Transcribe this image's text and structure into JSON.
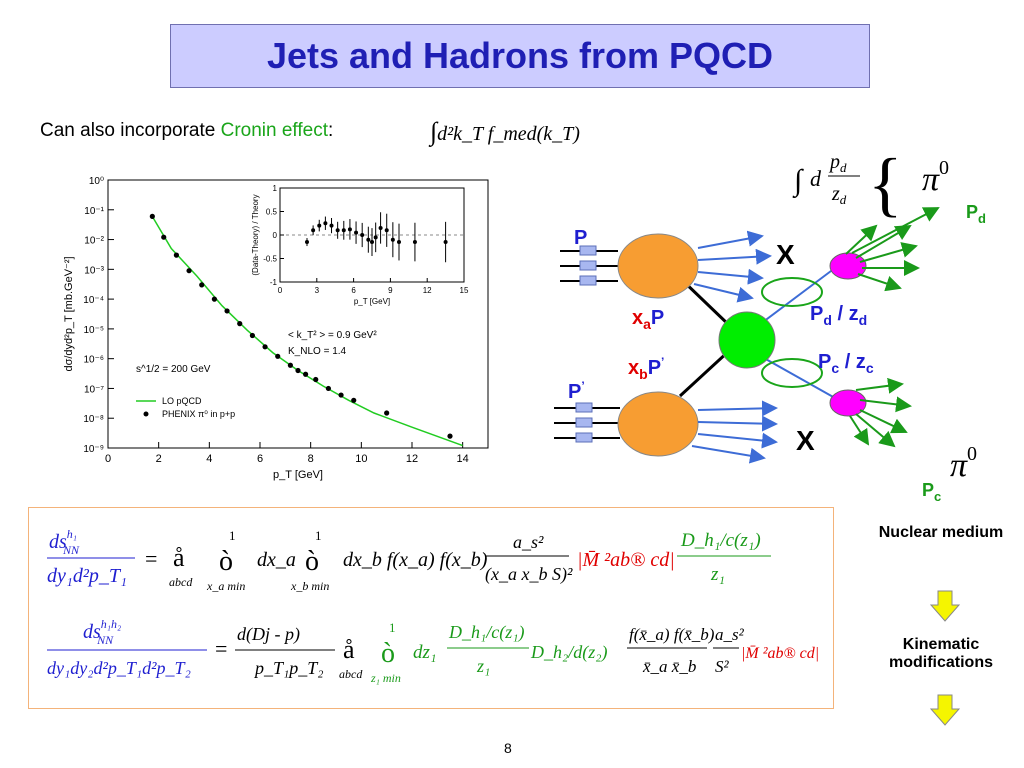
{
  "title": "Jets and Hadrons from PQCD",
  "intro": {
    "prefix": "Can also incorporate ",
    "cronin": "Cronin effect",
    "colon": ":"
  },
  "integral_kt": "d²k_T f_med(k_T)",
  "integral_pd": {
    "d": "d",
    "num": "p",
    "num_sub": "d",
    "den": "z",
    "den_sub": "d"
  },
  "main_chart": {
    "ylabel": "dσ/dyd²p_T [mb.GeV⁻²]",
    "xlabel": "p_T [GeV]",
    "yticks": [
      "10⁰",
      "10⁻¹",
      "10⁻²",
      "10⁻³",
      "10⁻⁴",
      "10⁻⁵",
      "10⁻⁶",
      "10⁻⁷",
      "10⁻⁸",
      "10⁻⁹"
    ],
    "xticks": [
      "0",
      "2",
      "4",
      "6",
      "8",
      "10",
      "12",
      "14"
    ],
    "energy": "s^1/2 = 200 GeV",
    "kt_note": "< k_T² > = 0.9 GeV²",
    "knlo": "K_NLO = 1.4",
    "legend_line": "LO pQCD",
    "legend_dots": "PHENIX π⁰ in p+p"
  },
  "inset_chart": {
    "ylabel": "(Data-Theory) / Theory",
    "xlabel": "p_T [GeV]",
    "yticks": [
      "1",
      "0.5",
      "0",
      "-0.5",
      "-1"
    ],
    "xticks": [
      "0",
      "3",
      "6",
      "9",
      "12",
      "15"
    ]
  },
  "chart_data": [
    {
      "type": "scatter",
      "title": "",
      "xlabel": "p_T [GeV]",
      "ylabel": "dσ/dyd²p_T [mb.GeV⁻²]",
      "xlim": [
        0,
        15
      ],
      "ylim": [
        1e-09,
        1
      ],
      "yscale": "log",
      "series": [
        {
          "name": "PHENIX π⁰ in p+p",
          "x": [
            1.75,
            2.2,
            2.7,
            3.2,
            3.7,
            4.2,
            4.7,
            5.2,
            5.7,
            6.2,
            6.7,
            7.2,
            7.5,
            7.8,
            8.2,
            8.7,
            9.2,
            9.7,
            11.0,
            13.5
          ],
          "y": [
            0.06,
            0.012,
            0.003,
            0.0009,
            0.0003,
            0.0001,
            4e-05,
            1.5e-05,
            6e-06,
            2.5e-06,
            1.2e-06,
            6e-07,
            4e-07,
            3e-07,
            2e-07,
            1e-07,
            6e-08,
            4e-08,
            1.5e-08,
            2.5e-09
          ]
        },
        {
          "name": "LO pQCD",
          "x": [
            1.7,
            2.5,
            3.5,
            4.5,
            5.5,
            6.5,
            7.5,
            8.5,
            9.5,
            10.5,
            12.0,
            14.0
          ],
          "y": [
            0.07,
            0.005,
            0.0006,
            6e-05,
            9e-06,
            1.6e-06,
            4e-07,
            1.2e-07,
            4e-08,
            1.5e-08,
            5e-09,
            1.2e-09
          ]
        }
      ]
    },
    {
      "type": "scatter",
      "title": "",
      "xlabel": "p_T [GeV]",
      "ylabel": "(Data-Theory) / Theory",
      "xlim": [
        0,
        15
      ],
      "ylim": [
        -1,
        1
      ],
      "series": [
        {
          "name": "",
          "x": [
            2.2,
            2.7,
            3.2,
            3.7,
            4.2,
            4.7,
            5.2,
            5.7,
            6.2,
            6.7,
            7.2,
            7.5,
            7.8,
            8.2,
            8.7,
            9.2,
            9.7,
            11.0,
            13.5
          ],
          "y": [
            -0.15,
            0.1,
            0.2,
            0.25,
            0.2,
            0.1,
            0.1,
            0.12,
            0.05,
            0.0,
            -0.1,
            -0.15,
            -0.05,
            0.15,
            0.1,
            -0.1,
            -0.15,
            -0.15,
            -0.15
          ]
        }
      ]
    }
  ],
  "diagram": {
    "P": "P",
    "P_prime": "P",
    "xaP": {
      "x": "x",
      "sub": "a",
      "P": "P"
    },
    "xbP": {
      "x": "x",
      "sub": "b",
      "P": "P",
      "prime": "’"
    },
    "X": "X",
    "pi0": "π",
    "pi0_sup": "0",
    "Pd": {
      "P": "P",
      "sub": "d"
    },
    "Pc": {
      "P": "P",
      "sub": "c"
    },
    "Pd_zd": {
      "P": "P",
      "sub1": "d",
      "mid": " / z",
      "sub2": "d"
    },
    "Pc_zc": {
      "P": "P",
      "sub1": "c",
      "mid": " / z",
      "sub2": "c"
    },
    "colors": {
      "hadron": "#f79d32",
      "parton": "#00ee00",
      "fragment": "#ff00ff",
      "arrow_blue": "#3d6cd6",
      "arrow_green": "#1a9a1a"
    }
  },
  "side": {
    "nuclear": "Nuclear medium",
    "kinematic": "Kinematic modifications"
  },
  "page_number": "8",
  "formula1": {
    "lhs_num": "ds",
    "lhs_num_sup": "h₁",
    "lhs_num_sub": "NN",
    "lhs_den": "dy₁d²p_T₁",
    "eq": "=",
    "sum": "å",
    "sum_sub": "abcd",
    "int1": "ò",
    "int1_top": "1",
    "int1_bot": "x_a min",
    "dxa": "dx_a",
    "int2": "ò",
    "int2_top": "1",
    "int2_bot": "x_b min",
    "body": "dx_b f(x_a) f(x_b)",
    "alpha_num": "a_s²",
    "alpha_den": "(x_a x_b S)²",
    "M": "|M̄ ²ab® cd|",
    "D_num": "D_h₁/c(z₁)",
    "D_den": "z₁"
  },
  "formula2": {
    "lhs_num": "ds",
    "lhs_num_sup": "h₁h₂",
    "lhs_num_sub": "NN",
    "lhs_den": "dy₁dy₂d²p_T₁d²p_T₂",
    "eq": "=",
    "dphi_num": "d(Dj - p)",
    "dphi_den": "p_T₁p_T₂",
    "sum": "å",
    "sum_sub": "abcd",
    "int": "ò",
    "int_top": "1",
    "int_bot": "z₁ min",
    "dz": "dz₁",
    "D1_num": "D_h₁/c(z₁)",
    "D1_den": "z₁",
    "D2": "D_h₂/d(z₂)",
    "f_num": "f(x̄_a) f(x̄_b)",
    "f_den": "x̄_a x̄_b",
    "alpha_num": "a_s²",
    "alpha_den": "S²",
    "M": "|M̄ ²ab® cd|"
  }
}
